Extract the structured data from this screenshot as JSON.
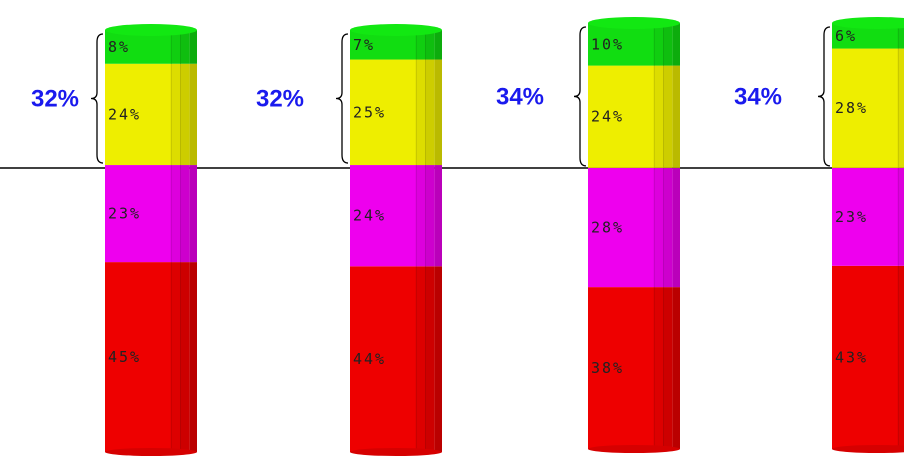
{
  "chart_data": {
    "type": "bar",
    "stacked": true,
    "segment_colors": [
      "#ee0000",
      "#ee00ee",
      "#eeee00",
      "#11dd11"
    ],
    "brace_color": "#1a1aee",
    "axis_color": "#000000",
    "bars": [
      {
        "segments": [
          {
            "value": 45,
            "label": "45%"
          },
          {
            "value": 23,
            "label": "23%"
          },
          {
            "value": 24,
            "label": "24%"
          },
          {
            "value": 8,
            "label": "8%"
          }
        ],
        "brace_label": "32%"
      },
      {
        "segments": [
          {
            "value": 44,
            "label": "44%"
          },
          {
            "value": 24,
            "label": "24%"
          },
          {
            "value": 25,
            "label": "25%"
          },
          {
            "value": 7,
            "label": "7%"
          }
        ],
        "brace_label": "32%"
      },
      {
        "segments": [
          {
            "value": 38,
            "label": "38%"
          },
          {
            "value": 28,
            "label": "28%"
          },
          {
            "value": 24,
            "label": "24%"
          },
          {
            "value": 10,
            "label": "10%"
          }
        ],
        "brace_label": "34%"
      },
      {
        "segments": [
          {
            "value": 43,
            "label": "43%"
          },
          {
            "value": 23,
            "label": "23%"
          },
          {
            "value": 28,
            "label": "28%"
          },
          {
            "value": 6,
            "label": "6%"
          }
        ],
        "brace_label": "34%"
      }
    ]
  }
}
